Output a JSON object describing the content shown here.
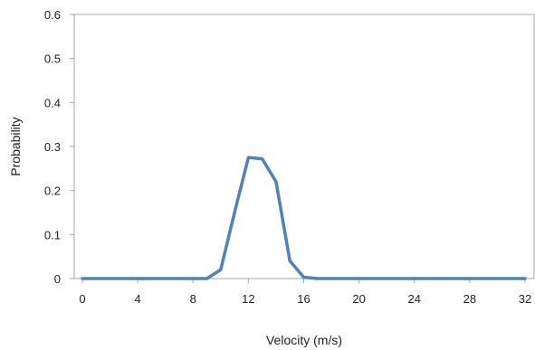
{
  "chart_data": {
    "type": "line",
    "xlabel": "Velocity (m/s)",
    "ylabel": "Probability",
    "xlim": [
      0,
      32
    ],
    "ylim": [
      0,
      0.6
    ],
    "xticks": [
      0,
      4,
      8,
      12,
      16,
      20,
      24,
      28,
      32
    ],
    "yticks": [
      0,
      0.1,
      0.2,
      0.3,
      0.4,
      0.5,
      0.6
    ],
    "ytick_labels": [
      "0",
      "0.1",
      "0.2",
      "0.3",
      "0.4",
      "0.5",
      "0.6"
    ],
    "grid": false,
    "legend": false,
    "series_color": "#4f81bd",
    "series": [
      {
        "x": [
          0,
          1,
          2,
          3,
          4,
          5,
          6,
          7,
          8,
          9,
          10,
          11,
          12,
          13,
          14,
          15,
          16,
          17,
          18,
          19,
          20,
          21,
          22,
          23,
          24,
          25,
          26,
          27,
          28,
          29,
          30,
          31,
          32
        ],
        "y": [
          0,
          0,
          0,
          0,
          0,
          0,
          0,
          0,
          0,
          0,
          0.02,
          0.15,
          0.275,
          0.272,
          0.22,
          0.04,
          0.003,
          0,
          0,
          0,
          0,
          0,
          0,
          0,
          0,
          0,
          0,
          0,
          0,
          0,
          0,
          0,
          0
        ]
      }
    ]
  }
}
